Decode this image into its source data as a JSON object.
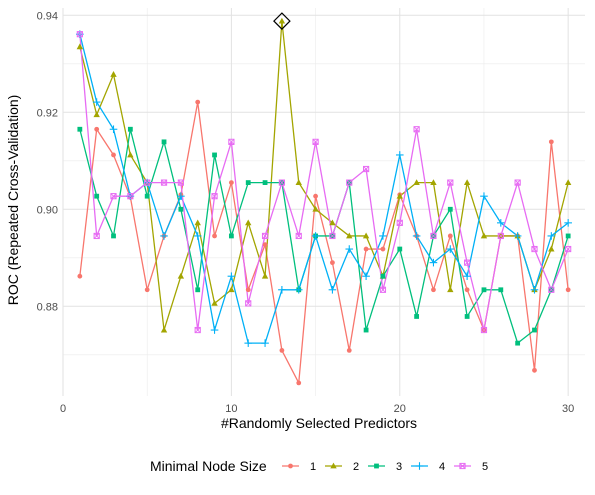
{
  "chart_data": {
    "type": "line",
    "xlabel": "#Randomly Selected Predictors",
    "ylabel": "ROC (Repeated Cross-Validation)",
    "xlim": [
      0,
      31
    ],
    "ylim": [
      0.8615,
      0.9415
    ],
    "x_ticks": [
      0,
      10,
      20,
      30
    ],
    "y_ticks": [
      0.88,
      0.9,
      0.92,
      0.94
    ],
    "y_tick_labels": [
      "0.88",
      "0.90",
      "0.92",
      "0.94"
    ],
    "grid": true,
    "legend_position": "bottom",
    "legend_title": "Minimal Node Size",
    "highlight": {
      "x": 13,
      "y": 0.9388
    },
    "x": [
      1,
      2,
      3,
      4,
      5,
      6,
      7,
      8,
      9,
      10,
      11,
      12,
      13,
      14,
      15,
      16,
      17,
      18,
      19,
      20,
      21,
      22,
      23,
      24,
      25,
      26,
      27,
      28,
      29,
      30
    ],
    "series": [
      {
        "name": "1",
        "color": "#F8766D",
        "marker": "circle",
        "values": [
          0.8862,
          0.9165,
          0.9112,
          0.9025,
          0.8834,
          0.8945,
          0.903,
          0.9221,
          0.8945,
          0.9055,
          0.8834,
          0.8927,
          0.8709,
          0.8642,
          0.9027,
          0.889,
          0.8709,
          0.8918,
          0.8918,
          0.903,
          0.8945,
          0.8834,
          0.8945,
          0.8834,
          0.8751,
          0.8945,
          0.8945,
          0.8668,
          0.9139,
          0.8834
        ]
      },
      {
        "name": "2",
        "color": "#A3A500",
        "marker": "triangle",
        "values": [
          0.9335,
          0.9195,
          0.9278,
          0.9112,
          0.9055,
          0.8751,
          0.8862,
          0.8972,
          0.8806,
          0.8834,
          0.8972,
          0.8862,
          0.9388,
          0.9055,
          0.9,
          0.8972,
          0.8945,
          0.8945,
          0.8862,
          0.9027,
          0.9055,
          0.9055,
          0.8834,
          0.9055,
          0.8945,
          0.8945,
          0.8945,
          0.8834,
          0.8918,
          0.9055
        ]
      },
      {
        "name": "3",
        "color": "#00BF7D",
        "marker": "square",
        "values": [
          0.9165,
          0.9027,
          0.8945,
          0.9165,
          0.9027,
          0.9139,
          0.9,
          0.8834,
          0.9112,
          0.8945,
          0.9055,
          0.9055,
          0.9055,
          0.8834,
          0.8945,
          0.8945,
          0.9055,
          0.8751,
          0.8862,
          0.8918,
          0.8779,
          0.8945,
          0.9,
          0.8779,
          0.8834,
          0.8834,
          0.8724,
          0.8751,
          0.8834,
          0.8945
        ]
      },
      {
        "name": "4",
        "color": "#00B0F6",
        "marker": "plus",
        "values": [
          0.9361,
          0.9221,
          0.9165,
          0.9027,
          0.9055,
          0.8945,
          0.9027,
          0.8945,
          0.8751,
          0.8862,
          0.8724,
          0.8724,
          0.8834,
          0.8834,
          0.8945,
          0.8834,
          0.8918,
          0.8862,
          0.8945,
          0.9112,
          0.8945,
          0.889,
          0.8918,
          0.8862,
          0.9027,
          0.8972,
          0.8945,
          0.8834,
          0.8945,
          0.8972
        ]
      },
      {
        "name": "5",
        "color": "#E76BF3",
        "marker": "boxx",
        "values": [
          0.9361,
          0.8945,
          0.9027,
          0.9027,
          0.9055,
          0.9055,
          0.9055,
          0.8751,
          0.9027,
          0.9139,
          0.8806,
          0.8945,
          0.9055,
          0.8945,
          0.9139,
          0.8945,
          0.9055,
          0.9083,
          0.8834,
          0.8972,
          0.9165,
          0.8945,
          0.9055,
          0.889,
          0.8751,
          0.8945,
          0.9055,
          0.8918,
          0.8834,
          0.8918
        ]
      }
    ]
  }
}
